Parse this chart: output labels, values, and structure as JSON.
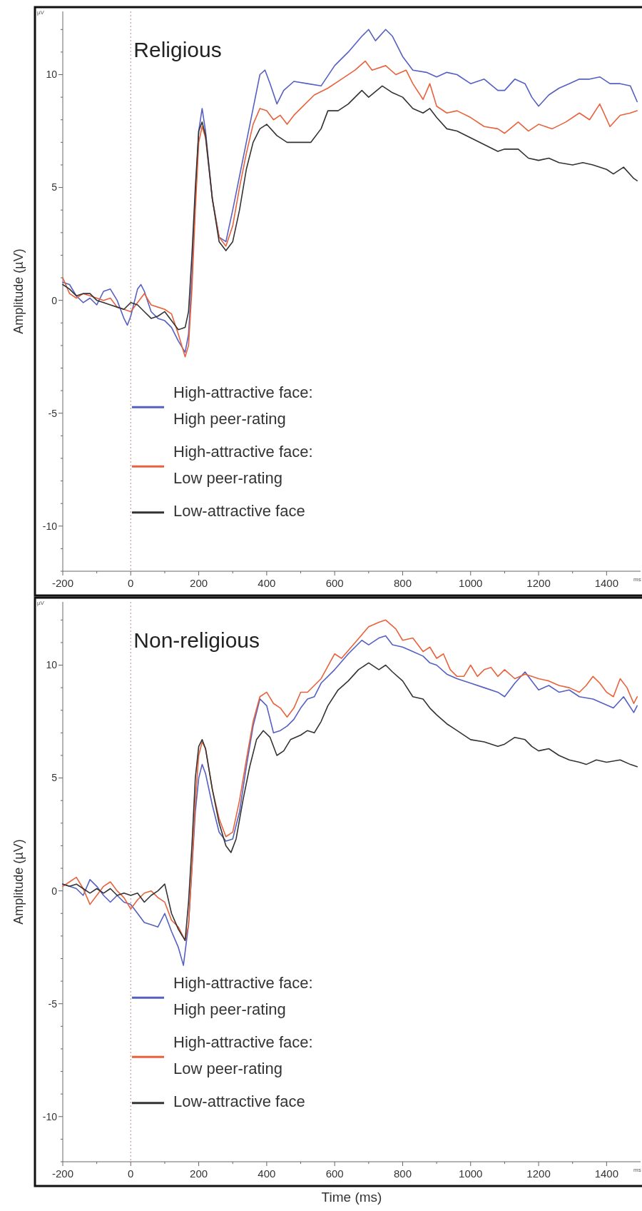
{
  "chart_data": [
    {
      "type": "line",
      "title": "Religious",
      "ylabel": "Amplitude (µV)",
      "annotations": [
        "µV",
        "ms"
      ],
      "xlim": [
        -200,
        1500
      ],
      "ylim": [
        -12,
        12.8
      ],
      "xticks": [
        -200,
        {
          "value": -100,
          "label": null
        },
        0,
        {
          "value": 100,
          "label": null
        },
        200,
        {
          "value": 300,
          "label": null
        },
        400,
        {
          "value": 500,
          "label": null
        },
        600,
        {
          "value": 700,
          "label": null
        },
        800,
        {
          "value": 900,
          "label": null
        },
        1000,
        {
          "value": 1100,
          "label": null
        },
        1200,
        {
          "value": 1300,
          "label": null
        },
        1400
      ],
      "yticks": [
        {
          "value": -12,
          "label": null
        },
        {
          "value": -11,
          "label": null
        },
        -10,
        {
          "value": -9,
          "label": null
        },
        {
          "value": -8,
          "label": null
        },
        {
          "value": -7,
          "label": null
        },
        {
          "value": -6,
          "label": null
        },
        -5,
        {
          "value": -4,
          "label": null
        },
        {
          "value": -3,
          "label": null
        },
        {
          "value": -2,
          "label": null
        },
        {
          "value": -1,
          "label": null
        },
        0,
        {
          "value": 1,
          "label": null
        },
        {
          "value": 2,
          "label": null
        },
        {
          "value": 3,
          "label": null
        },
        {
          "value": 4,
          "label": null
        },
        5,
        {
          "value": 6,
          "label": null
        },
        {
          "value": 7,
          "label": null
        },
        {
          "value": 8,
          "label": null
        },
        {
          "value": 9,
          "label": null
        },
        10,
        {
          "value": 11,
          "label": null
        },
        {
          "value": 12,
          "label": null
        }
      ],
      "ref_lines": [
        {
          "axis": "x",
          "value": 0,
          "color": "#c99a9a",
          "line_style": "dotted"
        }
      ],
      "legend": "bottom left",
      "line_style": "solid",
      "series": [
        {
          "name": "High-attractive face: High peer-rating",
          "color": "#5560c2",
          "x": [
            -200,
            -180,
            -160,
            -140,
            -120,
            -100,
            -80,
            -60,
            -40,
            -20,
            -10,
            0,
            20,
            30,
            40,
            60,
            80,
            100,
            120,
            140,
            160,
            170,
            180,
            190,
            200,
            210,
            220,
            240,
            260,
            280,
            300,
            320,
            340,
            360,
            380,
            395,
            410,
            430,
            450,
            480,
            520,
            560,
            600,
            640,
            680,
            700,
            720,
            750,
            770,
            800,
            830,
            870,
            900,
            930,
            960,
            1000,
            1040,
            1080,
            1100,
            1130,
            1160,
            1180,
            1200,
            1230,
            1260,
            1290,
            1320,
            1350,
            1380,
            1410,
            1440,
            1470,
            1490
          ],
          "values": [
            0.8,
            0.7,
            0.2,
            -0.1,
            0.1,
            -0.2,
            0.4,
            0.5,
            0,
            -0.8,
            -1.1,
            -0.7,
            0.5,
            0.7,
            0.4,
            -0.5,
            -0.8,
            -0.9,
            -1.2,
            -1.8,
            -2.3,
            -1.5,
            1,
            4.5,
            7.5,
            8.5,
            7.5,
            4.5,
            2.8,
            2.6,
            4,
            5.5,
            7,
            8.5,
            10,
            10.2,
            9.6,
            8.7,
            9.3,
            9.7,
            9.6,
            9.5,
            10.4,
            11,
            11.7,
            12,
            11.5,
            12,
            11.7,
            10.8,
            10.2,
            10.1,
            9.9,
            10.1,
            10,
            9.6,
            9.8,
            9.3,
            9.3,
            9.8,
            9.6,
            9,
            8.6,
            9.1,
            9.4,
            9.6,
            9.8,
            9.8,
            9.9,
            9.6,
            9.6,
            9.5,
            8.8
          ]
        },
        {
          "name": "High-attractive face: Low peer-rating",
          "color": "#e8623c",
          "x": [
            -200,
            -180,
            -160,
            -140,
            -120,
            -100,
            -80,
            -60,
            -40,
            -20,
            0,
            20,
            40,
            60,
            80,
            100,
            120,
            140,
            160,
            170,
            180,
            190,
            200,
            210,
            220,
            240,
            260,
            280,
            300,
            320,
            340,
            360,
            380,
            400,
            420,
            440,
            460,
            480,
            500,
            540,
            580,
            620,
            660,
            690,
            710,
            750,
            780,
            810,
            830,
            860,
            880,
            900,
            930,
            960,
            1000,
            1040,
            1080,
            1100,
            1140,
            1170,
            1200,
            1240,
            1280,
            1320,
            1350,
            1380,
            1410,
            1440,
            1470,
            1490
          ],
          "values": [
            1,
            0.3,
            0.1,
            0.3,
            0.2,
            0.1,
            0,
            0.1,
            -0.3,
            -0.4,
            -0.5,
            -0.1,
            0.3,
            -0.2,
            -0.3,
            -0.4,
            -0.6,
            -1.5,
            -2.5,
            -2,
            0.5,
            4,
            7,
            7.7,
            7.2,
            4.5,
            2.8,
            2.4,
            3.3,
            5,
            6.5,
            7.8,
            8.5,
            8.4,
            8,
            8.2,
            7.8,
            8.2,
            8.5,
            9.1,
            9.4,
            9.8,
            10.2,
            10.6,
            10.2,
            10.4,
            10,
            10.2,
            9.6,
            8.9,
            9.6,
            8.6,
            8.3,
            8.4,
            8.1,
            7.7,
            7.6,
            7.4,
            7.9,
            7.5,
            7.8,
            7.6,
            7.9,
            8.3,
            8,
            8.7,
            7.7,
            8.2,
            8.3,
            8.4
          ]
        },
        {
          "name": "Low-attractive face",
          "color": "#333333",
          "x": [
            -200,
            -180,
            -160,
            -140,
            -120,
            -100,
            -80,
            -60,
            -40,
            -20,
            0,
            20,
            40,
            60,
            80,
            100,
            120,
            140,
            160,
            170,
            180,
            190,
            200,
            210,
            220,
            240,
            260,
            280,
            300,
            320,
            340,
            360,
            380,
            400,
            430,
            460,
            500,
            530,
            560,
            580,
            610,
            640,
            680,
            700,
            740,
            770,
            800,
            830,
            860,
            880,
            900,
            930,
            960,
            1000,
            1040,
            1080,
            1100,
            1140,
            1170,
            1200,
            1230,
            1260,
            1300,
            1330,
            1360,
            1400,
            1420,
            1450,
            1480,
            1490
          ],
          "values": [
            0.7,
            0.5,
            0.2,
            0.3,
            0.3,
            0,
            -0.1,
            -0.2,
            -0.3,
            -0.4,
            -0.1,
            -0.2,
            -0.5,
            -0.8,
            -0.7,
            -0.5,
            -0.9,
            -1.3,
            -1.2,
            -0.5,
            2,
            5,
            7.5,
            7.9,
            7.3,
            4.5,
            2.6,
            2.2,
            2.6,
            4,
            5.8,
            7,
            7.6,
            7.8,
            7.3,
            7,
            7,
            7,
            7.6,
            8.4,
            8.4,
            8.7,
            9.3,
            9,
            9.5,
            9.2,
            9,
            8.5,
            8.3,
            8.5,
            8.1,
            7.6,
            7.5,
            7.2,
            6.9,
            6.6,
            6.7,
            6.7,
            6.3,
            6.2,
            6.3,
            6.1,
            6,
            6.1,
            6,
            5.8,
            5.6,
            5.9,
            5.4,
            5.3
          ]
        }
      ]
    },
    {
      "type": "line",
      "title": "Non-religious",
      "xlabel": "Time (ms)",
      "ylabel": "Amplitude (µV)",
      "annotations": [
        "µV",
        "ms"
      ],
      "xlim": [
        -200,
        1500
      ],
      "ylim": [
        -12,
        12.8
      ],
      "xticks": [
        -200,
        {
          "value": -100,
          "label": null
        },
        0,
        {
          "value": 100,
          "label": null
        },
        200,
        {
          "value": 300,
          "label": null
        },
        400,
        {
          "value": 500,
          "label": null
        },
        600,
        {
          "value": 700,
          "label": null
        },
        800,
        {
          "value": 900,
          "label": null
        },
        1000,
        {
          "value": 1100,
          "label": null
        },
        1200,
        {
          "value": 1300,
          "label": null
        },
        1400
      ],
      "yticks": [
        {
          "value": -12,
          "label": null
        },
        {
          "value": -11,
          "label": null
        },
        -10,
        {
          "value": -9,
          "label": null
        },
        {
          "value": -8,
          "label": null
        },
        {
          "value": -7,
          "label": null
        },
        {
          "value": -6,
          "label": null
        },
        -5,
        {
          "value": -4,
          "label": null
        },
        {
          "value": -3,
          "label": null
        },
        {
          "value": -2,
          "label": null
        },
        {
          "value": -1,
          "label": null
        },
        0,
        {
          "value": 1,
          "label": null
        },
        {
          "value": 2,
          "label": null
        },
        {
          "value": 3,
          "label": null
        },
        {
          "value": 4,
          "label": null
        },
        5,
        {
          "value": 6,
          "label": null
        },
        {
          "value": 7,
          "label": null
        },
        {
          "value": 8,
          "label": null
        },
        {
          "value": 9,
          "label": null
        },
        10,
        {
          "value": 11,
          "label": null
        },
        {
          "value": 12,
          "label": null
        }
      ],
      "ref_lines": [
        {
          "axis": "x",
          "value": 0,
          "color": "#c99a9a",
          "line_style": "dotted"
        }
      ],
      "legend": "bottom left",
      "line_style": "solid",
      "series": [
        {
          "name": "High-attractive face: High peer-rating",
          "color": "#5560c2",
          "x": [
            -200,
            -180,
            -160,
            -140,
            -120,
            -100,
            -80,
            -60,
            -40,
            -20,
            0,
            20,
            40,
            60,
            80,
            100,
            120,
            140,
            155,
            170,
            180,
            190,
            200,
            210,
            220,
            240,
            260,
            280,
            300,
            320,
            340,
            360,
            380,
            400,
            420,
            440,
            460,
            480,
            500,
            520,
            540,
            560,
            600,
            640,
            680,
            700,
            730,
            750,
            770,
            800,
            830,
            860,
            880,
            900,
            930,
            960,
            1000,
            1040,
            1080,
            1100,
            1130,
            1160,
            1180,
            1200,
            1230,
            1260,
            1290,
            1320,
            1360,
            1390,
            1420,
            1450,
            1480,
            1490
          ],
          "values": [
            0.3,
            0.2,
            0.1,
            -0.2,
            0.5,
            0.2,
            -0.2,
            -0.5,
            -0.2,
            -0.5,
            -0.6,
            -1,
            -1.4,
            -1.5,
            -1.6,
            -1,
            -1.8,
            -2.5,
            -3.3,
            -1.5,
            1,
            3.5,
            5,
            5.6,
            5.2,
            3.8,
            2.6,
            2.2,
            2.3,
            3.5,
            5.5,
            7.3,
            8.5,
            8.2,
            7,
            7.1,
            7.3,
            7.6,
            8.1,
            8.5,
            8.6,
            9.2,
            9.8,
            10.5,
            11.1,
            10.9,
            11.2,
            11.3,
            10.9,
            10.8,
            10.6,
            10.4,
            10.1,
            10,
            9.6,
            9.4,
            9.2,
            9,
            8.8,
            8.6,
            9.2,
            9.7,
            9.3,
            8.9,
            9.1,
            8.8,
            8.9,
            8.6,
            8.5,
            8.3,
            8.1,
            8.6,
            7.9,
            8.2
          ]
        },
        {
          "name": "High-attractive face: Low peer-rating",
          "color": "#e8623c",
          "x": [
            -200,
            -180,
            -160,
            -140,
            -120,
            -100,
            -80,
            -60,
            -40,
            -20,
            0,
            20,
            40,
            60,
            80,
            100,
            120,
            140,
            160,
            170,
            180,
            190,
            200,
            210,
            220,
            240,
            260,
            280,
            300,
            320,
            340,
            360,
            380,
            400,
            420,
            440,
            460,
            480,
            500,
            520,
            560,
            600,
            620,
            660,
            700,
            730,
            750,
            780,
            800,
            830,
            860,
            880,
            900,
            920,
            940,
            960,
            980,
            1000,
            1020,
            1040,
            1060,
            1080,
            1100,
            1130,
            1160,
            1180,
            1200,
            1230,
            1260,
            1290,
            1320,
            1340,
            1360,
            1380,
            1400,
            1420,
            1440,
            1460,
            1480,
            1490
          ],
          "values": [
            0.2,
            0.4,
            0.6,
            0.1,
            -0.6,
            -0.2,
            0.2,
            0.4,
            0,
            -0.3,
            -0.8,
            -0.4,
            -0.1,
            0,
            -0.3,
            -0.5,
            -1.3,
            -1.6,
            -2.2,
            -1.5,
            1,
            4,
            6,
            6.6,
            6.3,
            4.5,
            3.2,
            2.4,
            2.6,
            4,
            5.8,
            7.5,
            8.6,
            8.8,
            8.3,
            8.1,
            7.7,
            8.1,
            8.8,
            8.8,
            9.4,
            10.5,
            10.3,
            11,
            11.7,
            11.9,
            12,
            11.6,
            11.1,
            11.2,
            10.6,
            10.8,
            10.3,
            10.5,
            9.8,
            9.5,
            9.5,
            10,
            9.5,
            9.8,
            9.9,
            9.5,
            9.8,
            9.4,
            9.6,
            9.5,
            9.4,
            9.3,
            9.1,
            9,
            8.8,
            9.1,
            9.5,
            9.2,
            8.8,
            8.6,
            9.4,
            9,
            8.3,
            8.6
          ]
        },
        {
          "name": "Low-attractive face",
          "color": "#333333",
          "x": [
            -200,
            -180,
            -160,
            -140,
            -120,
            -100,
            -80,
            -60,
            -40,
            -20,
            0,
            20,
            40,
            60,
            80,
            100,
            120,
            140,
            160,
            170,
            180,
            190,
            200,
            210,
            220,
            240,
            260,
            280,
            295,
            310,
            330,
            350,
            370,
            390,
            410,
            430,
            450,
            470,
            500,
            520,
            540,
            560,
            580,
            610,
            640,
            670,
            700,
            730,
            750,
            770,
            800,
            830,
            860,
            880,
            900,
            930,
            960,
            1000,
            1040,
            1080,
            1100,
            1130,
            1160,
            1180,
            1200,
            1230,
            1260,
            1290,
            1320,
            1340,
            1370,
            1400,
            1440,
            1470,
            1490
          ],
          "values": [
            0.3,
            0.2,
            0.3,
            0.1,
            -0.1,
            0.1,
            -0.1,
            0.1,
            -0.2,
            -0.1,
            -0.2,
            -0.1,
            -0.5,
            -0.2,
            0,
            0.3,
            -1,
            -1.7,
            -2.2,
            -0.5,
            2,
            5,
            6.4,
            6.7,
            6.3,
            4.5,
            3,
            2,
            1.7,
            2.3,
            4,
            5.5,
            6.7,
            7.1,
            6.8,
            6,
            6.2,
            6.7,
            6.9,
            7.1,
            7,
            7.5,
            8.2,
            8.9,
            9.3,
            9.8,
            10.1,
            9.8,
            10,
            9.7,
            9.3,
            8.6,
            8.5,
            8.1,
            7.8,
            7.4,
            7.1,
            6.7,
            6.6,
            6.4,
            6.5,
            6.8,
            6.7,
            6.4,
            6.2,
            6.3,
            6,
            5.8,
            5.7,
            5.6,
            5.8,
            5.7,
            5.8,
            5.6,
            5.5
          ]
        }
      ]
    }
  ]
}
